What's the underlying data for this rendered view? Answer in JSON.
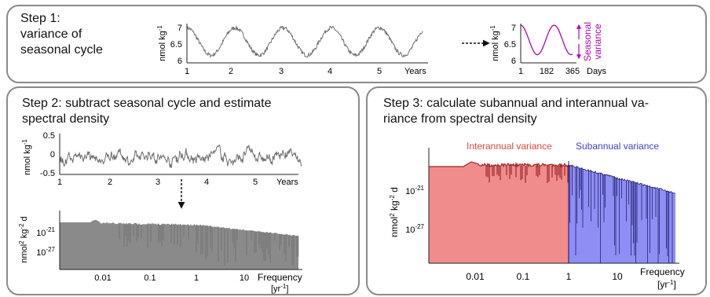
{
  "steps": {
    "step1": {
      "title_lines": [
        "Step 1:",
        "variance of",
        "seasonal cycle"
      ],
      "ylabel": "nmol kg",
      "ylabel_sup": "-1",
      "yticks": [
        "7",
        "6.5",
        "6"
      ],
      "xticks": [
        "1",
        "2",
        "3",
        "4",
        "5"
      ],
      "xlabel": "Years",
      "inset": {
        "ylabel": "nmol kg",
        "ylabel_sup": "-1",
        "yticks": [
          "7",
          "6.5",
          "6"
        ],
        "xticks": [
          "1",
          "182",
          "365"
        ],
        "xlabel": "Days",
        "annotation_lines": [
          "Seasonal",
          "variance"
        ]
      }
    },
    "step2": {
      "title_lines": [
        "Step 2: subtract seasonal cycle and estimate",
        "spectral density"
      ],
      "ts": {
        "ylabel": "nmol kg",
        "ylabel_sup": "-1",
        "yticks": [
          "0.5",
          "0",
          "-0.5"
        ],
        "xticks": [
          "1",
          "2",
          "3",
          "4",
          "5"
        ],
        "xlabel": "Years"
      },
      "spec": {
        "ylabel_parts": [
          "nmol",
          "2",
          " kg",
          "-2",
          " d"
        ],
        "yticks": [
          {
            "base": "10",
            "exp": "-21"
          },
          {
            "base": "10",
            "exp": "-27"
          }
        ],
        "xticks": [
          "0.01",
          "0.1",
          "1",
          "10"
        ],
        "xlabel": "Frequency",
        "xunit": "[yr",
        "xunit_sup": "-1",
        "xunit_end": "]"
      }
    },
    "step3": {
      "title_lines": [
        "Step 3: calculate subannual and interannual va-",
        "riance from spectral density"
      ],
      "interannual_label": "Interannual variance",
      "subannual_label": "Subannual variance",
      "ylabel_parts": [
        "nmol",
        "2",
        " kg",
        "-2",
        " d"
      ],
      "yticks": [
        {
          "base": "10",
          "exp": "-21"
        },
        {
          "base": "10",
          "exp": "-27"
        }
      ],
      "xticks": [
        "0.01",
        "0.1",
        "1",
        "10"
      ],
      "xlabel": "Frequency",
      "xunit": "[yr",
      "xunit_sup": "-1",
      "xunit_end": "]",
      "colors": {
        "interannual": "#f08c8c",
        "interannual_line": "#9b2a2a",
        "subannual": "#8e8ef5",
        "subannual_line": "#14145c"
      }
    }
  },
  "colors": {
    "panel_border": "#8a8a8a",
    "series": "#707070",
    "seasonal": "#b400b4"
  }
}
